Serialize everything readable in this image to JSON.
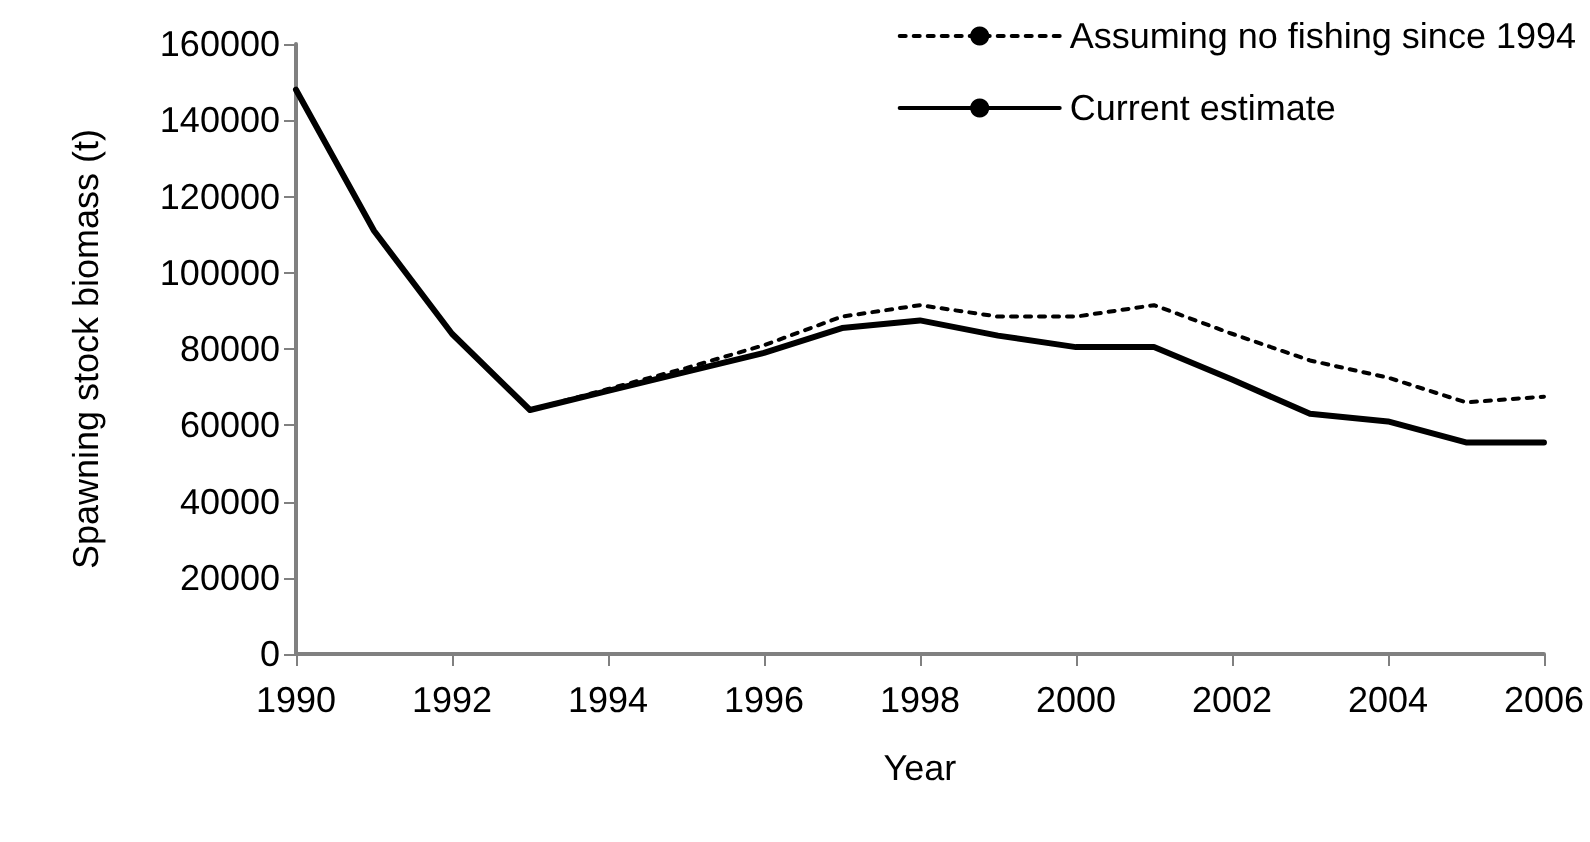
{
  "chart_data": {
    "type": "line",
    "xlabel": "Year",
    "ylabel": "Spawning stock biomass (t)",
    "x": [
      1990,
      1991,
      1992,
      1993,
      1994,
      1995,
      1996,
      1997,
      1998,
      1999,
      2000,
      2001,
      2002,
      2003,
      2004,
      2005,
      2006
    ],
    "series": [
      {
        "name": "Assuming no fishing since 1994",
        "color": "#000000",
        "line_style": "dotted",
        "values": [
          148000,
          111000,
          84000,
          64000,
          69500,
          75000,
          81000,
          88500,
          91500,
          88500,
          88500,
          91500,
          84000,
          77000,
          72500,
          66000,
          67500
        ]
      },
      {
        "name": "Current estimate",
        "color": "#000000",
        "line_style": "solid",
        "values": [
          148000,
          111000,
          84000,
          64000,
          69000,
          74000,
          79000,
          85500,
          87500,
          83500,
          80500,
          80500,
          72000,
          63000,
          61000,
          55500,
          55500
        ]
      }
    ],
    "xlim": [
      1990,
      2006
    ],
    "xticks": [
      1990,
      1992,
      1994,
      1996,
      1998,
      2000,
      2002,
      2004,
      2006
    ],
    "ylim": [
      0,
      160000
    ],
    "yticks": [
      0,
      20000,
      40000,
      60000,
      80000,
      100000,
      120000,
      140000,
      160000
    ],
    "grid": false,
    "legend": "top right",
    "marker": "none"
  }
}
